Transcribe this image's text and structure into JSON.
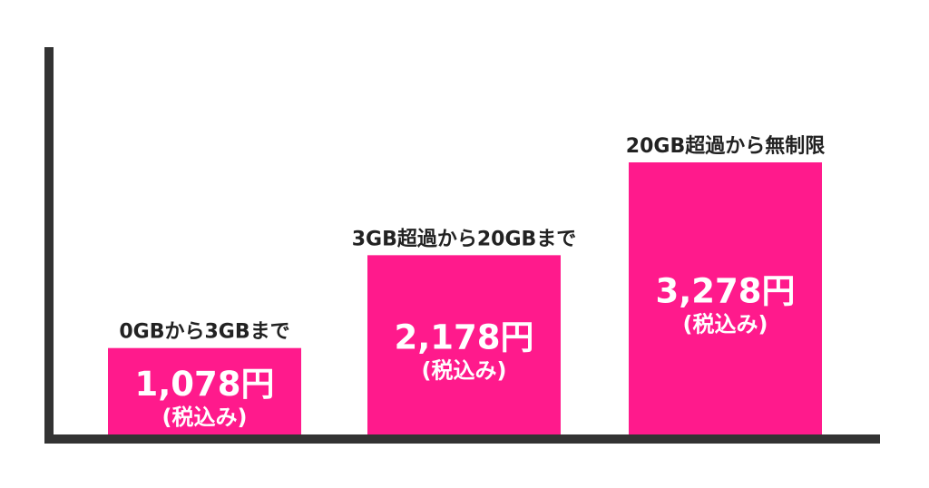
{
  "chart_data": {
    "type": "bar",
    "categories": [
      "0GBから3GBまで",
      "3GB超過から20GBまで",
      "20GB超過から無制限"
    ],
    "values": [
      1078,
      2178,
      3278
    ],
    "value_labels": [
      "1,078円",
      "2,178円",
      "3,278円"
    ],
    "tax_note": "(税込み)",
    "title": "",
    "xlabel": "",
    "ylabel": "",
    "ylim": [
      0,
      3278
    ],
    "grid": false,
    "legend": "none"
  },
  "colors": {
    "bar": "#ff1a8c",
    "axis": "#333333",
    "label_text": "#222222",
    "bar_text": "#ffffff"
  }
}
